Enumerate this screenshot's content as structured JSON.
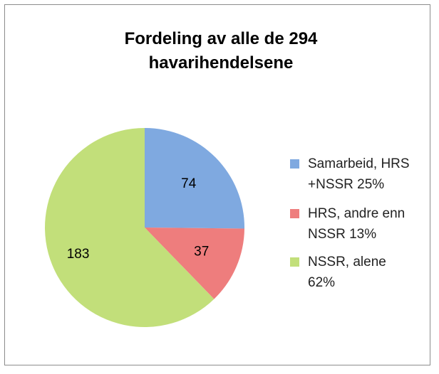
{
  "chart_data": {
    "type": "pie",
    "title": "Fordeling av alle de 294 havarihendelsene",
    "categories": [
      "Samarbeid, HRS +NSSR 25%",
      "HRS, andre enn NSSR 13%",
      "NSSR, alene 62%"
    ],
    "values": [
      74,
      37,
      183
    ],
    "colors": [
      "#7fa9e0",
      "#ee7d7d",
      "#c2df7a"
    ],
    "legend": "right"
  }
}
